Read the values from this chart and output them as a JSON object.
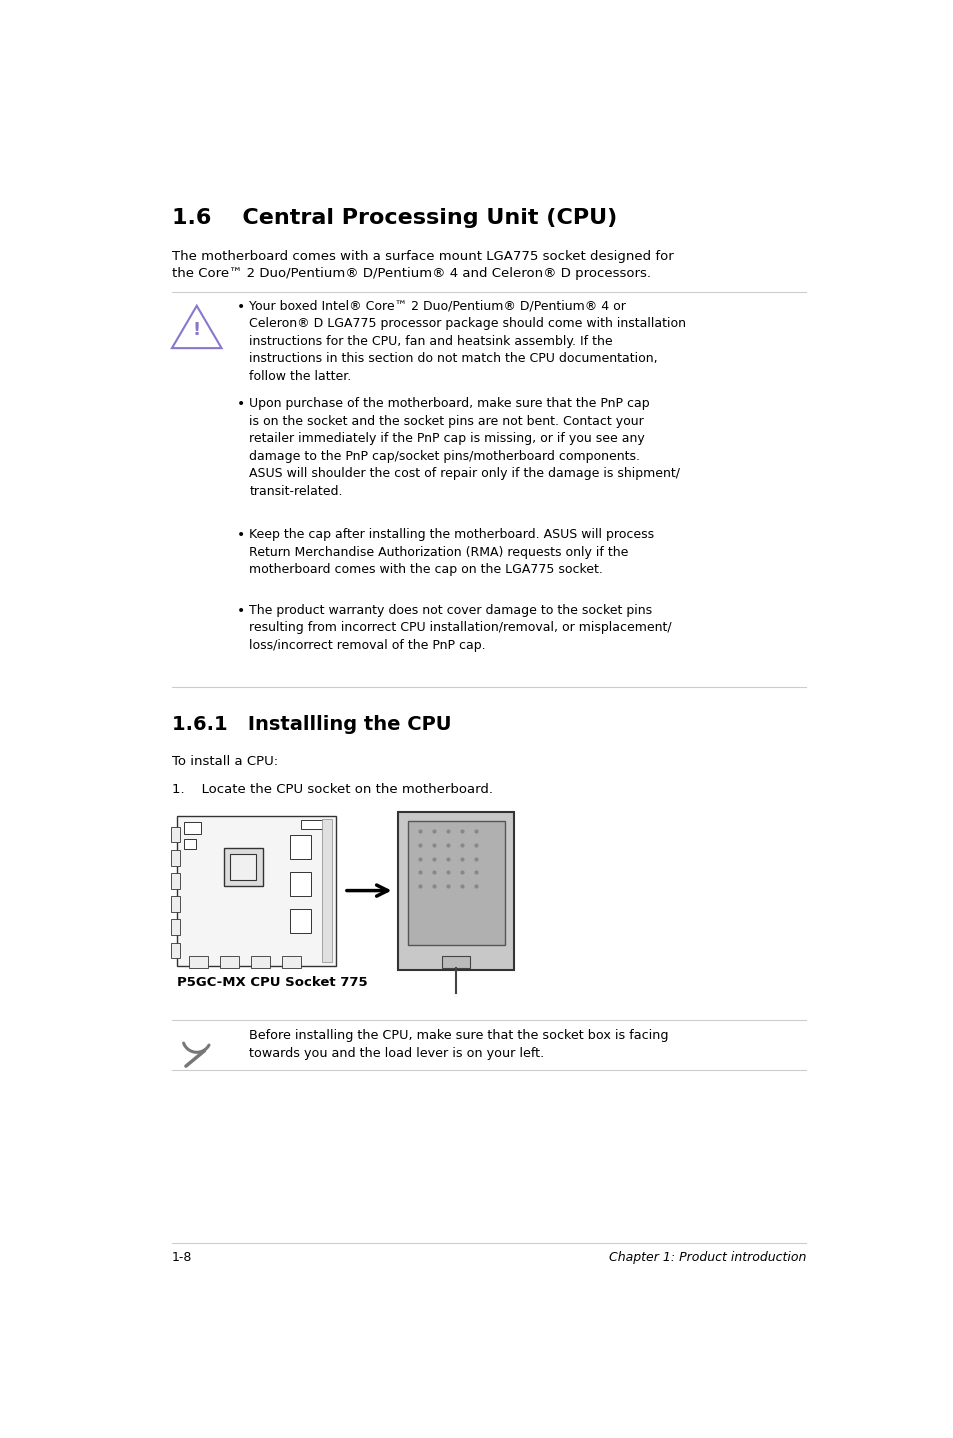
{
  "bg_color": "#ffffff",
  "title": "1.6    Central Processing Unit (CPU)",
  "subtitle": "The motherboard comes with a surface mount LGA775 socket designed for\nthe Core™ 2 Duo/Pentium® D/Pentium® 4 and Celeron® D processors.",
  "warning_bullets": [
    "Your boxed Intel® Core™ 2 Duo/Pentium® D/Pentium® 4 or\nCeleron® D LGA775 processor package should come with installation\ninstructions for the CPU, fan and heatsink assembly. If the\ninstructions in this section do not match the CPU documentation,\nfollow the latter.",
    "Upon purchase of the motherboard, make sure that the PnP cap\nis on the socket and the socket pins are not bent. Contact your\nretailer immediately if the PnP cap is missing, or if you see any\ndamage to the PnP cap/socket pins/motherboard components.\nASUS will shoulder the cost of repair only if the damage is shipment/\ntransit-related.",
    "Keep the cap after installing the motherboard. ASUS will process\nReturn Merchandise Authorization (RMA) requests only if the\nmotherboard comes with the cap on the LGA775 socket.",
    "The product warranty does not cover damage to the socket pins\nresulting from incorrect CPU installation/removal, or misplacement/\nloss/incorrect removal of the PnP cap."
  ],
  "section_161": "1.6.1   Installling the CPU",
  "install_intro": "To install a CPU:",
  "step1": "1.    Locate the CPU socket on the motherboard.",
  "caption": "P5GC-MX CPU Socket 775",
  "note_text": "Before installing the CPU, make sure that the socket box is facing\ntowards you and the load lever is on your left.",
  "footer_left": "1-8",
  "footer_right": "Chapter 1: Product introduction"
}
